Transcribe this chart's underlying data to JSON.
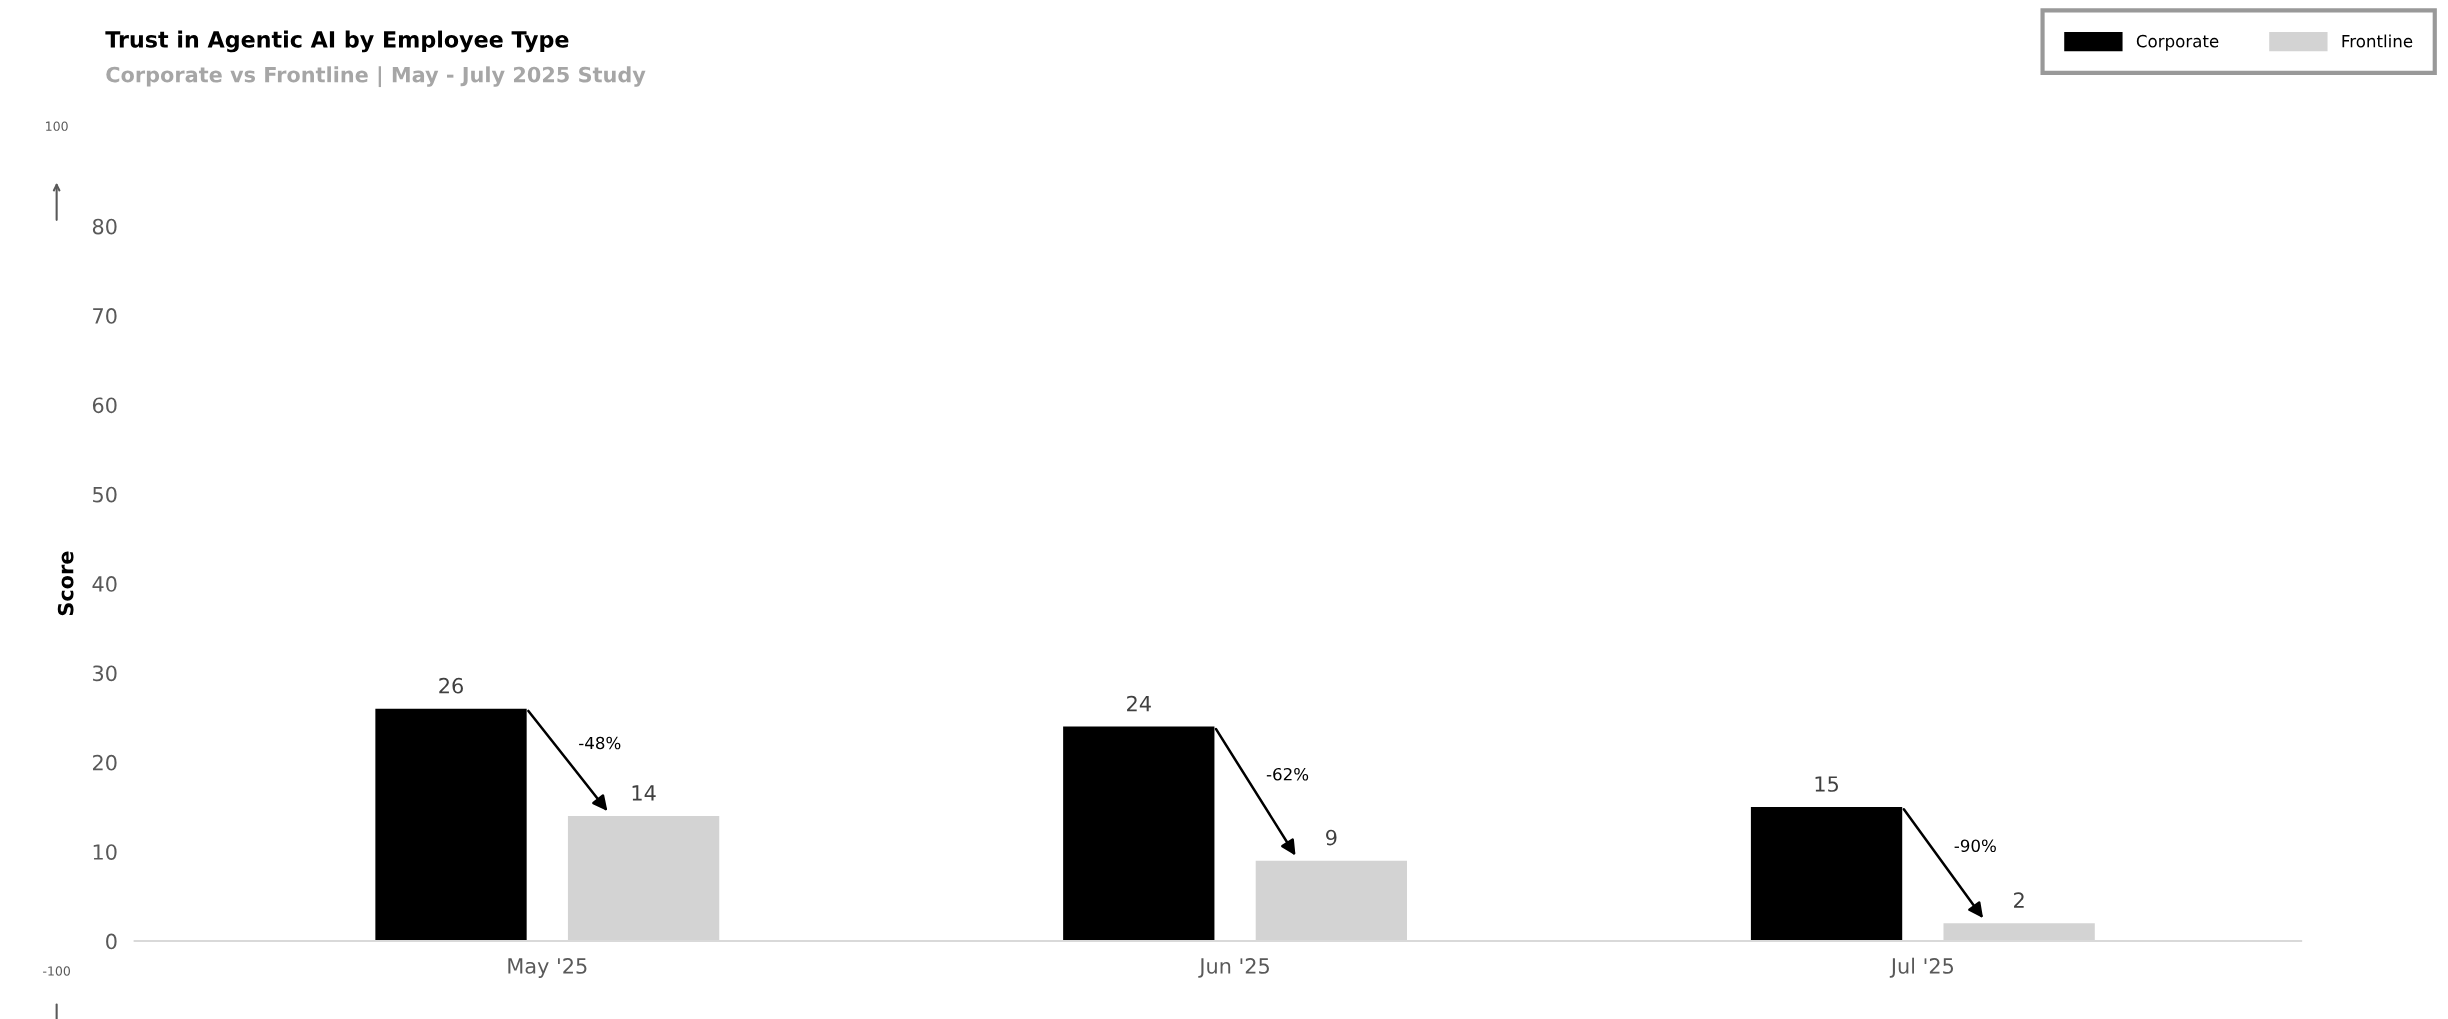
{
  "chart_data": {
    "type": "bar",
    "title": "Trust in Agentic AI by Employee Type",
    "subtitle": "Corporate vs Frontline | May - July 2025 Study",
    "ylabel": "Score",
    "categories": [
      "May '25",
      "Jun '25",
      "Jul '25"
    ],
    "series": [
      {
        "name": "Corporate",
        "color": "#000000",
        "values": [
          26,
          24,
          15
        ]
      },
      {
        "name": "Frontline",
        "color": "#d3d3d3",
        "values": [
          14,
          9,
          2
        ]
      }
    ],
    "ylim": [
      0,
      80
    ],
    "yticks": [
      0,
      10,
      20,
      30,
      40,
      50,
      60,
      70,
      80
    ],
    "grid": false,
    "legend": "top right",
    "data_labels": true,
    "annotations": [
      "100",
      "-100",
      "-48%",
      "-62%",
      "-90%"
    ]
  }
}
